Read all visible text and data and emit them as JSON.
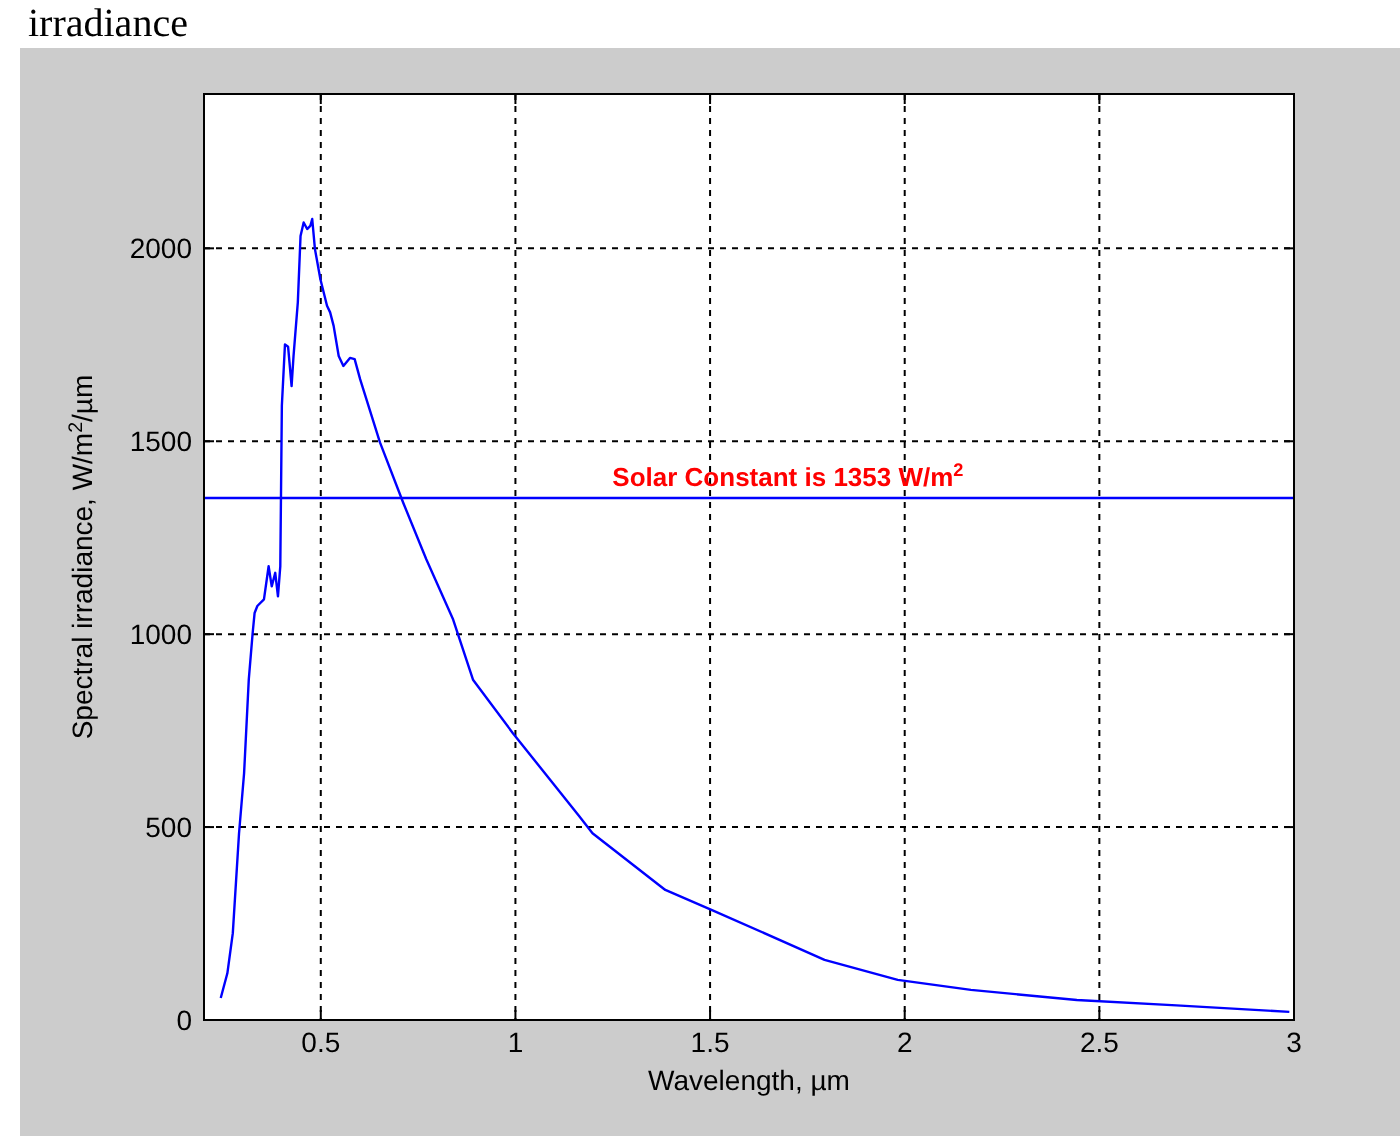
{
  "chart_data": {
    "type": "line",
    "title": "irradiance",
    "xlabel": "Wavelength, µm",
    "ylabel": "Spectral irradiance, W/m$^{2}$/µm",
    "series": [
      {
        "color": "#0000ff",
        "x": [
          0.243,
          0.26,
          0.274,
          0.29,
          0.303,
          0.315,
          0.325,
          0.33,
          0.337,
          0.354,
          0.366,
          0.374,
          0.383,
          0.39,
          0.396,
          0.4,
          0.408,
          0.416,
          0.425,
          0.43,
          0.441,
          0.448,
          0.456,
          0.465,
          0.473,
          0.478,
          0.485,
          0.499,
          0.516,
          0.524,
          0.533,
          0.546,
          0.558,
          0.575,
          0.587,
          0.601,
          0.652,
          0.712,
          0.771,
          0.84,
          0.891,
          0.993,
          1.164,
          1.198,
          1.385,
          1.505,
          1.794,
          1.982,
          2.17,
          2.442,
          2.698,
          2.988
        ],
        "values": [
          57,
          121,
          225,
          484,
          640,
          882,
          1003,
          1055,
          1073,
          1090,
          1176,
          1124,
          1159,
          1098,
          1176,
          1592,
          1751,
          1745,
          1643,
          1721,
          1860,
          2032,
          2067,
          2050,
          2058,
          2076,
          1998,
          1920,
          1851,
          1834,
          1799,
          1721,
          1695,
          1716,
          1713,
          1661,
          1497,
          1340,
          1194,
          1038,
          882,
          744,
          528,
          484,
          337,
          285,
          156,
          104,
          78,
          52,
          38,
          21
        ]
      }
    ],
    "ref_lines": [
      {
        "axis": "y",
        "value": 1353,
        "label": "Solar Constant is 1353 W/m$^{2}$",
        "color": "#0000ff"
      }
    ],
    "xlim": [
      0.2,
      3
    ],
    "xticks": [
      0.5,
      1,
      1.5,
      2,
      2.5,
      3
    ],
    "ylim": [
      0,
      2400
    ],
    "yticks": [
      0,
      500,
      1000,
      1500,
      2000
    ],
    "grid": true,
    "marker": "none",
    "line_style": "solid"
  }
}
